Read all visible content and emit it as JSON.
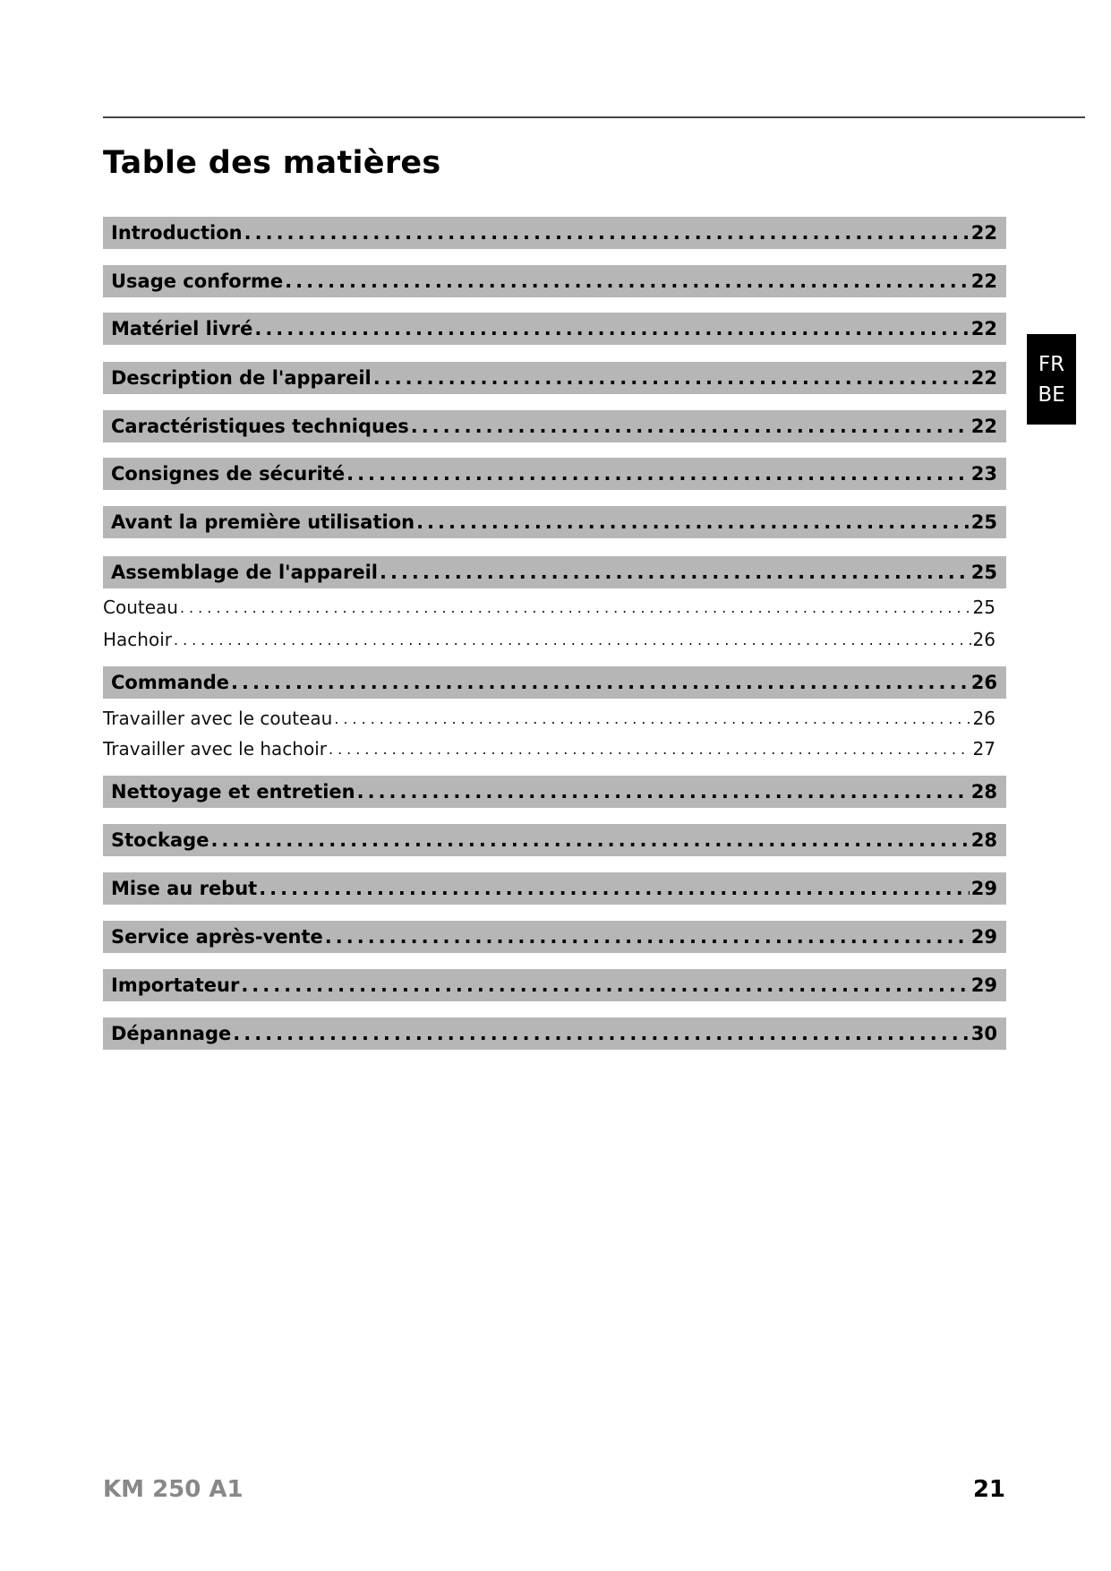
{
  "title": "Table des matières",
  "language_tab": {
    "line1": "FR",
    "line2": "BE"
  },
  "toc": [
    {
      "label": "Introduction",
      "page": "22",
      "level": "main"
    },
    {
      "label": "Usage conforme",
      "page": "22",
      "level": "main"
    },
    {
      "label": "Matériel livré",
      "page": "22",
      "level": "main"
    },
    {
      "label": "Description de l'appareil",
      "page": "22",
      "level": "main"
    },
    {
      "label": "Caractéristiques techniques",
      "page": "22",
      "level": "main"
    },
    {
      "label": "Consignes de sécurité",
      "page": "23",
      "level": "main"
    },
    {
      "label": "Avant la première utilisation",
      "page": "25",
      "level": "main"
    },
    {
      "label": "Assemblage de l'appareil",
      "page": "25",
      "level": "main"
    },
    {
      "label": "Couteau",
      "page": "25",
      "level": "sub"
    },
    {
      "label": "Hachoir",
      "page": "26",
      "level": "sub"
    },
    {
      "label": "Commande",
      "page": "26",
      "level": "main"
    },
    {
      "label": "Travailler avec le couteau",
      "page": "26",
      "level": "sub"
    },
    {
      "label": "Travailler avec le hachoir",
      "page": "27",
      "level": "sub"
    },
    {
      "label": "Nettoyage et entretien",
      "page": "28",
      "level": "main"
    },
    {
      "label": "Stockage",
      "page": "28",
      "level": "main"
    },
    {
      "label": "Mise au rebut",
      "page": "29",
      "level": "main"
    },
    {
      "label": "Service après-vente",
      "page": "29",
      "level": "main"
    },
    {
      "label": "Importateur",
      "page": "29",
      "level": "main"
    },
    {
      "label": "Dépannage",
      "page": "30",
      "level": "main"
    }
  ],
  "footer": {
    "model": "KM 250 A1",
    "page_number": "21"
  }
}
